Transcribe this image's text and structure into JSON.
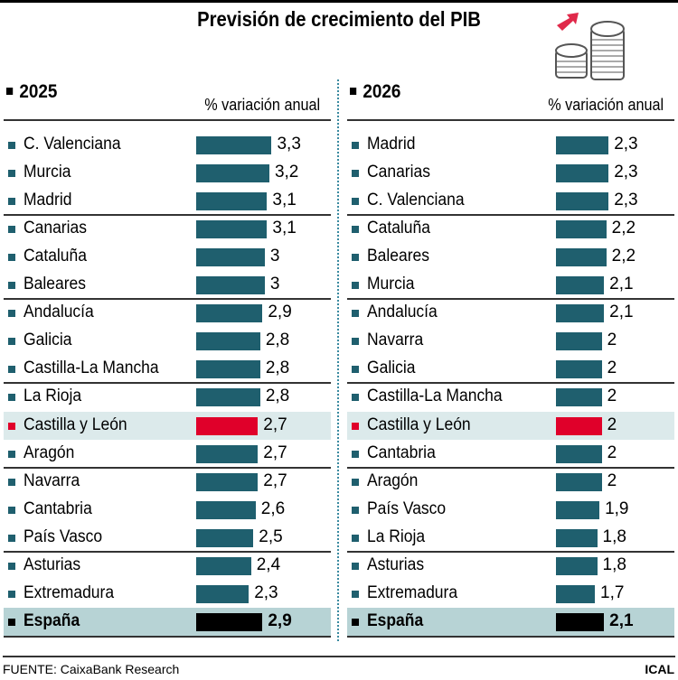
{
  "chart_data": [
    {
      "type": "bar",
      "title": "Previsión de crecimiento del PIB",
      "year": "2025",
      "unit_label": "% variación anual",
      "categories": [
        "C. Valenciana",
        "Murcia",
        "Madrid",
        "Canarias",
        "Cataluña",
        "Baleares",
        "Andalucía",
        "Galicia",
        "Castilla-La Mancha",
        "La Rioja",
        "Castilla y León",
        "Aragón",
        "Navarra",
        "Cantabria",
        "País Vasco",
        "Asturias",
        "Extremadura",
        "España"
      ],
      "values": [
        3.3,
        3.2,
        3.1,
        3.1,
        3,
        3,
        2.9,
        2.8,
        2.8,
        2.8,
        2.7,
        2.7,
        2.7,
        2.6,
        2.5,
        2.4,
        2.3,
        2.9
      ],
      "labels": [
        "3,3",
        "3,2",
        "3,1",
        "3,1",
        "3",
        "3",
        "2,9",
        "2,8",
        "2,8",
        "2,8",
        "2,7",
        "2,7",
        "2,7",
        "2,6",
        "2,5",
        "2,4",
        "2,3",
        "2,9"
      ],
      "highlight": "Castilla y León",
      "total": "España"
    },
    {
      "type": "bar",
      "year": "2026",
      "unit_label": "% variación anual",
      "categories": [
        "Madrid",
        "Canarias",
        "C. Valenciana",
        "Cataluña",
        "Baleares",
        "Murcia",
        "Andalucía",
        "Navarra",
        "Galicia",
        "Castilla-La Mancha",
        "Castilla y León",
        "Cantabria",
        "Aragón",
        "País Vasco",
        "La Rioja",
        "Asturias",
        "Extremadura",
        "España"
      ],
      "values": [
        2.3,
        2.3,
        2.3,
        2.2,
        2.2,
        2.1,
        2.1,
        2,
        2,
        2,
        2,
        2,
        2,
        1.9,
        1.8,
        1.8,
        1.7,
        2.1
      ],
      "labels": [
        "2,3",
        "2,3",
        "2,3",
        "2,2",
        "2,2",
        "2,1",
        "2,1",
        "2",
        "2",
        "2",
        "2",
        "2",
        "2",
        "1,9",
        "1,8",
        "1,8",
        "1,7",
        "2,1"
      ],
      "highlight": "Castilla y León",
      "total": "España"
    }
  ],
  "title": "Previsión de crecimiento del PIB",
  "footer": {
    "source": "FUENTE: CaixaBank Research",
    "credit": "ICAL"
  },
  "colors": {
    "bar": "#1f5f6e",
    "highlight": "#e0002a",
    "total": "#000000"
  }
}
